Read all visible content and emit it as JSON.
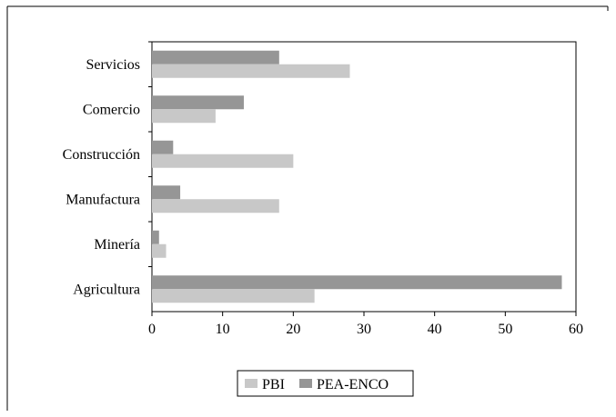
{
  "chart_data": {
    "type": "bar",
    "orientation": "horizontal",
    "categories": [
      "Servicios",
      "Comercio",
      "Construcción",
      "Manufactura",
      "Minería",
      "Agricultura"
    ],
    "series": [
      {
        "name": "PBI",
        "color": "#c8c8c8",
        "values": [
          28,
          9,
          20,
          18,
          2,
          23
        ]
      },
      {
        "name": "PEA-ENCO",
        "color": "#969696",
        "values": [
          18,
          13,
          3,
          4,
          1,
          58
        ]
      }
    ],
    "xlim": [
      0,
      60
    ],
    "xticks": [
      "0",
      "10",
      "20",
      "30",
      "40",
      "50",
      "60"
    ],
    "grid": false,
    "legend_position": "bottom"
  }
}
